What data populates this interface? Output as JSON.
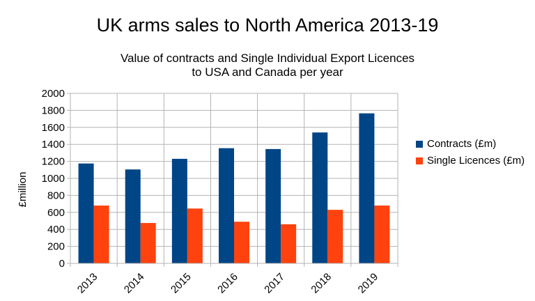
{
  "chart_data": {
    "type": "bar",
    "title": "UK arms sales to North America 2013-19",
    "subtitle": [
      "Value of contracts and Single Individual Export Licences",
      "to USA and Canada per year"
    ],
    "ylabel": "£million",
    "xlabel": "",
    "categories": [
      "2013",
      "2014",
      "2015",
      "2016",
      "2017",
      "2018",
      "2019"
    ],
    "ylim": [
      0,
      2000
    ],
    "yticks": [
      0,
      200,
      400,
      600,
      800,
      1000,
      1200,
      1400,
      1600,
      1800,
      2000
    ],
    "grid": true,
    "legend_position": "right",
    "series": [
      {
        "name": "Contracts (£m)",
        "color": "#004586",
        "values": [
          1175,
          1105,
          1230,
          1355,
          1345,
          1540,
          1765
        ]
      },
      {
        "name": "Single Licences (£m)",
        "color": "#ff420e",
        "values": [
          680,
          475,
          645,
          490,
          460,
          630,
          680
        ]
      }
    ]
  }
}
